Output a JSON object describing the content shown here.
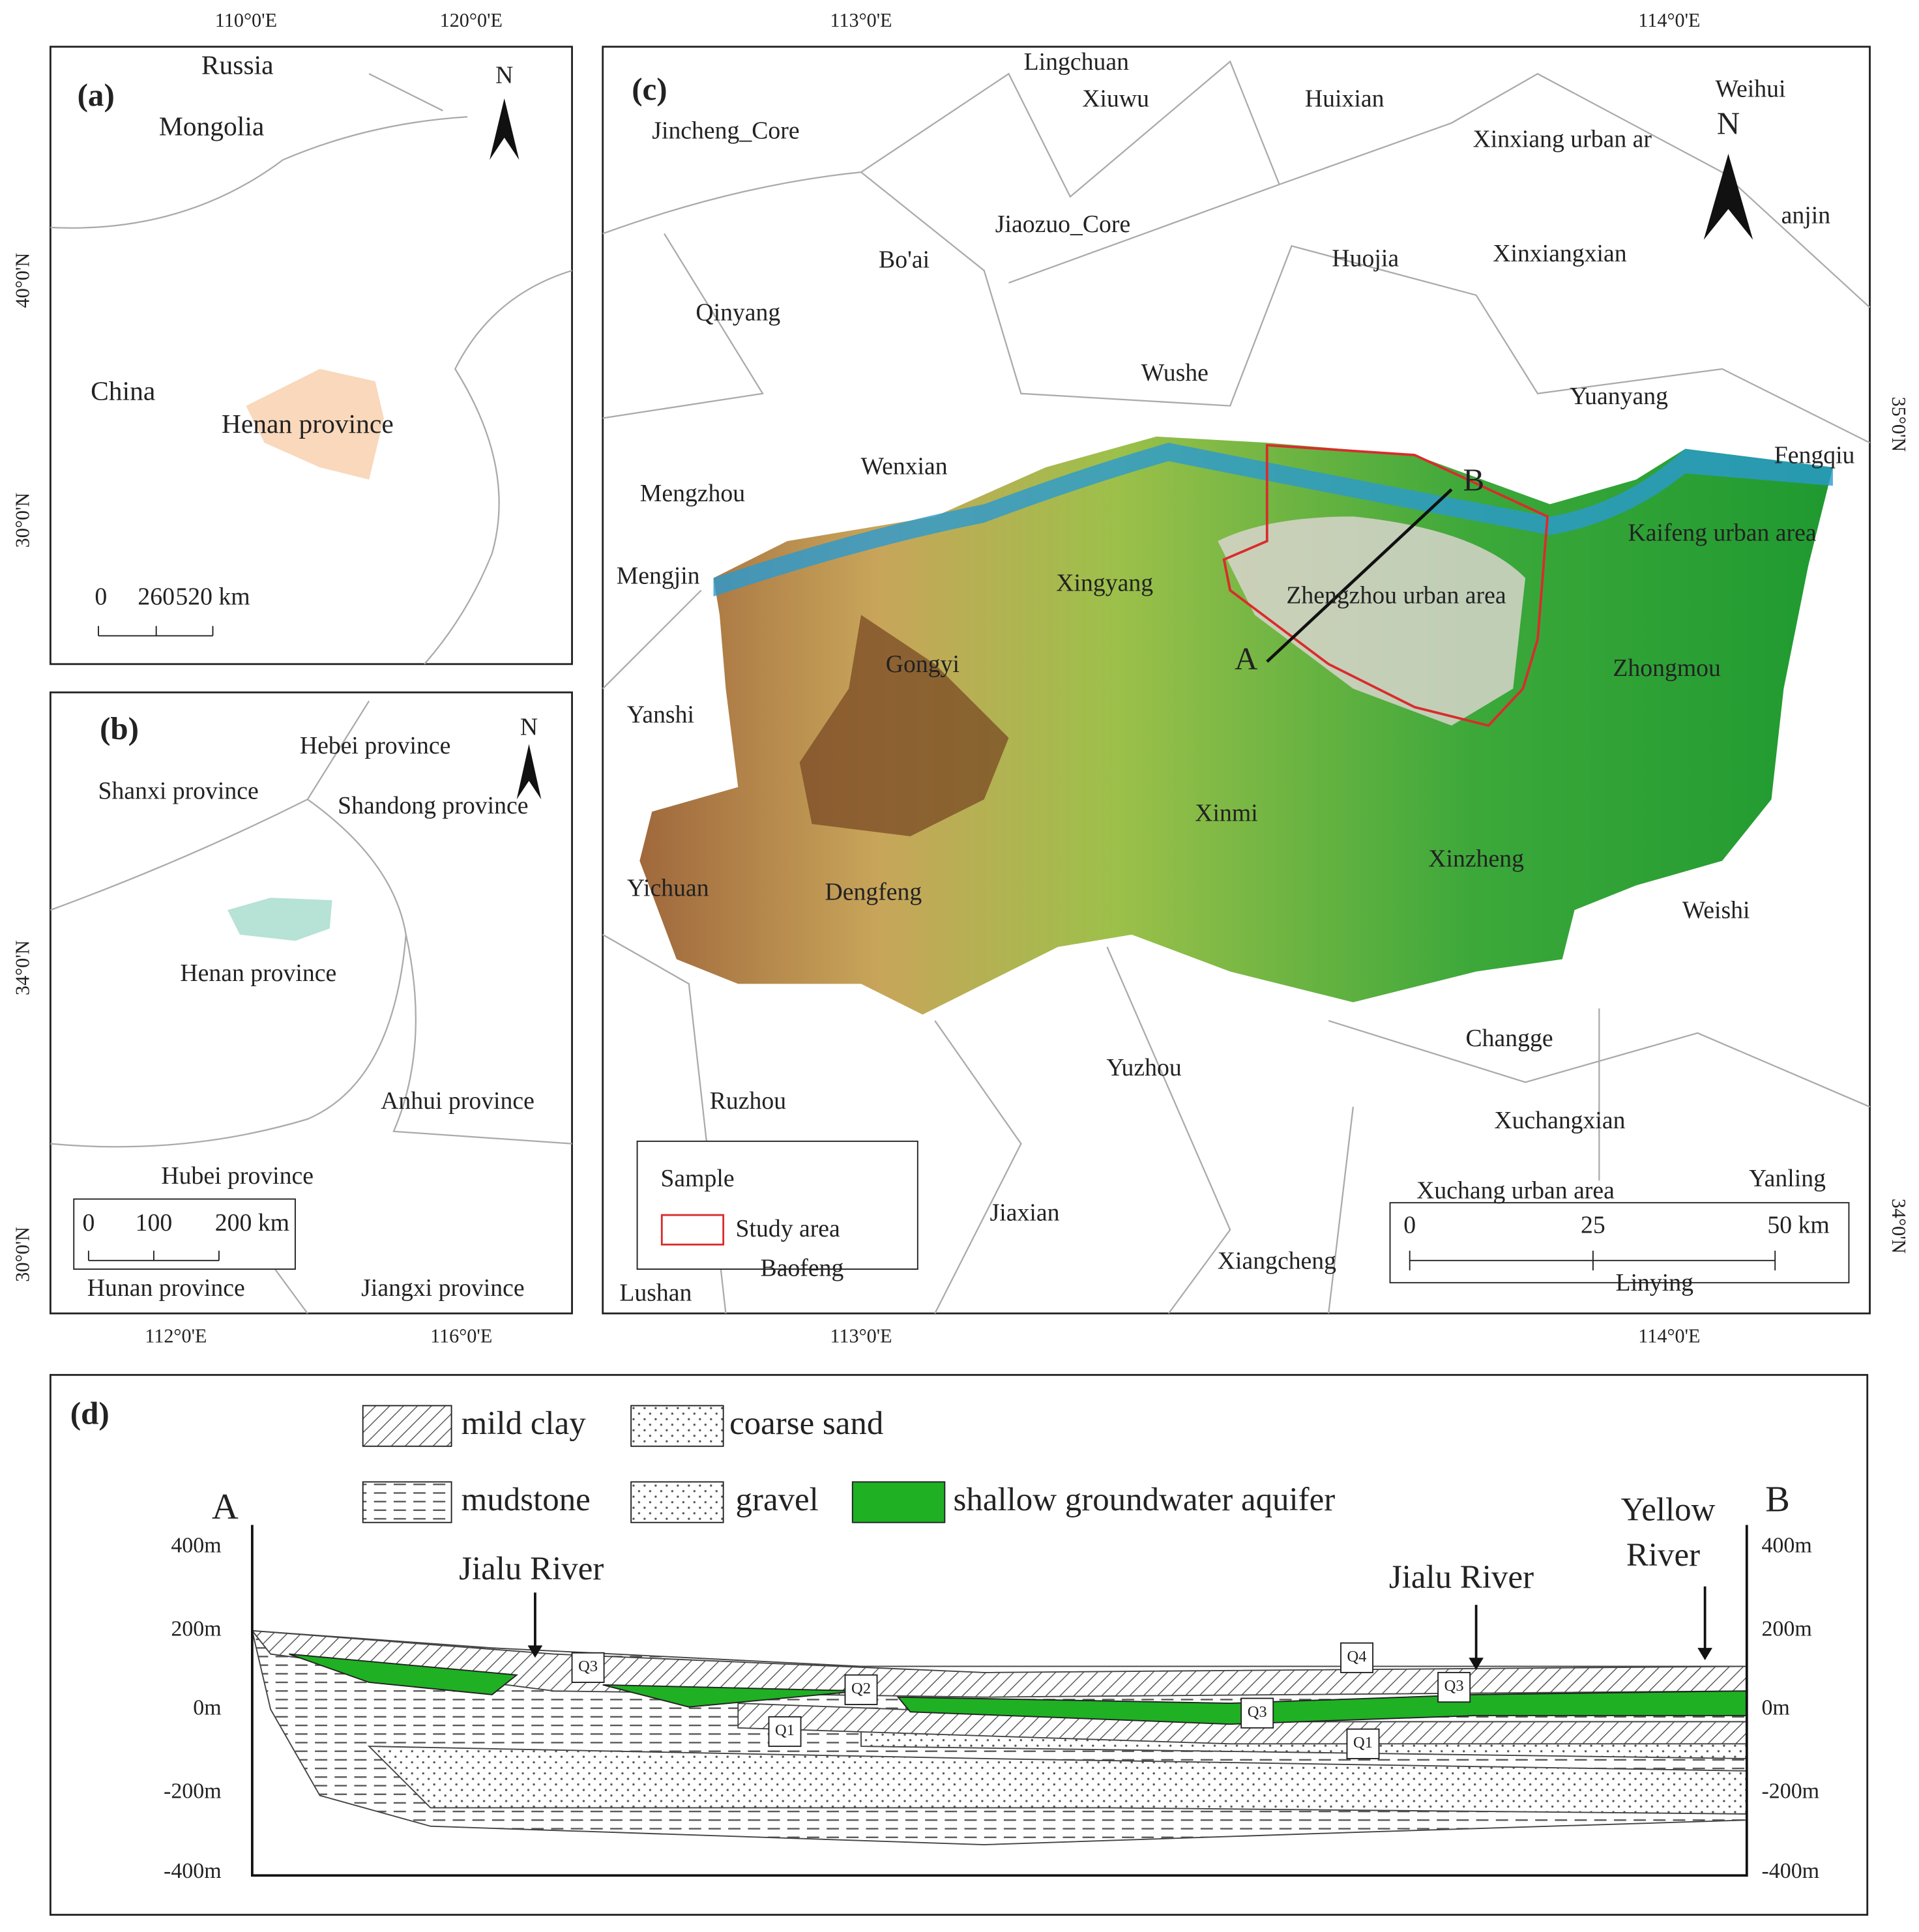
{
  "panel_a": {
    "label": "(a)",
    "north": "N",
    "places": [
      "Russia",
      "Mongolia",
      "China",
      "Henan province"
    ],
    "scale": [
      "0",
      "260",
      "520 km"
    ],
    "x_ticks": [
      "110°0'E",
      "120°0'E"
    ],
    "y_ticks": [
      "40°0'N",
      "30°0'N"
    ]
  },
  "panel_b": {
    "label": "(b)",
    "north": "N",
    "places": [
      "Hebei province",
      "Shanxi province",
      "Shandong province",
      "Henan province",
      "Anhui province",
      "Hubei province",
      "Hunan province",
      "Jiangxi province"
    ],
    "scale": [
      "0",
      "100",
      "200 km"
    ],
    "x_ticks": [
      "112°0'E",
      "116°0'E"
    ],
    "y_ticks": [
      "34°0'N",
      "30°0'N"
    ]
  },
  "panel_c": {
    "label": "(c)",
    "north": "N",
    "places": [
      "Lingchuan",
      "Xiuwu",
      "Huixian",
      "Weihui",
      "Jincheng_Core",
      "Xinxiang urban ar",
      "anjin",
      "Jiaozuo_Core",
      "Bo'ai",
      "Huojia",
      "Xinxiangxian",
      "Qinyang",
      "Wushe",
      "Yuanyang",
      "Fengqiu",
      "Wenxian",
      "Mengzhou",
      "Kaifeng urban area",
      "Mengjin",
      "Xingyang",
      "Zhengzhou urban area",
      "Gongyi",
      "Zhongmou",
      "Yanshi",
      "Xinmi",
      "Xinzheng",
      "Yichuan",
      "Dengfeng",
      "Weishi",
      "Changge",
      "Yuzhou",
      "Ruzhou",
      "Xuchangxian",
      "Yanling",
      "Xuchang urban area",
      "Jiaxian",
      "Xiangcheng",
      "Baofeng",
      "Linying",
      "Lushan"
    ],
    "section_ends": [
      "A",
      "B"
    ],
    "legend": {
      "title": "Sample",
      "item": "Study area"
    },
    "scale": [
      "0",
      "25",
      "50 km"
    ],
    "x_ticks": [
      "113°0'E",
      "114°0'E"
    ],
    "y_ticks": [
      "35°0'N",
      "34°0'N"
    ]
  },
  "panel_d": {
    "label": "(d)",
    "legend": [
      "mild clay",
      "coarse sand",
      "mudstone",
      "gravel",
      "shallow groundwater aquifer"
    ],
    "ends": [
      "A",
      "B"
    ],
    "rivers": [
      "Jialu River",
      "Jialu River"
    ],
    "yellow_river": [
      "Yellow",
      "River"
    ],
    "y_ticks": [
      "400m",
      "200m",
      "0m",
      "-200m",
      "-400m"
    ],
    "strata": [
      "Q3",
      "Q2",
      "Q1",
      "Q4",
      "Q3",
      "Q3",
      "Q1"
    ]
  }
}
